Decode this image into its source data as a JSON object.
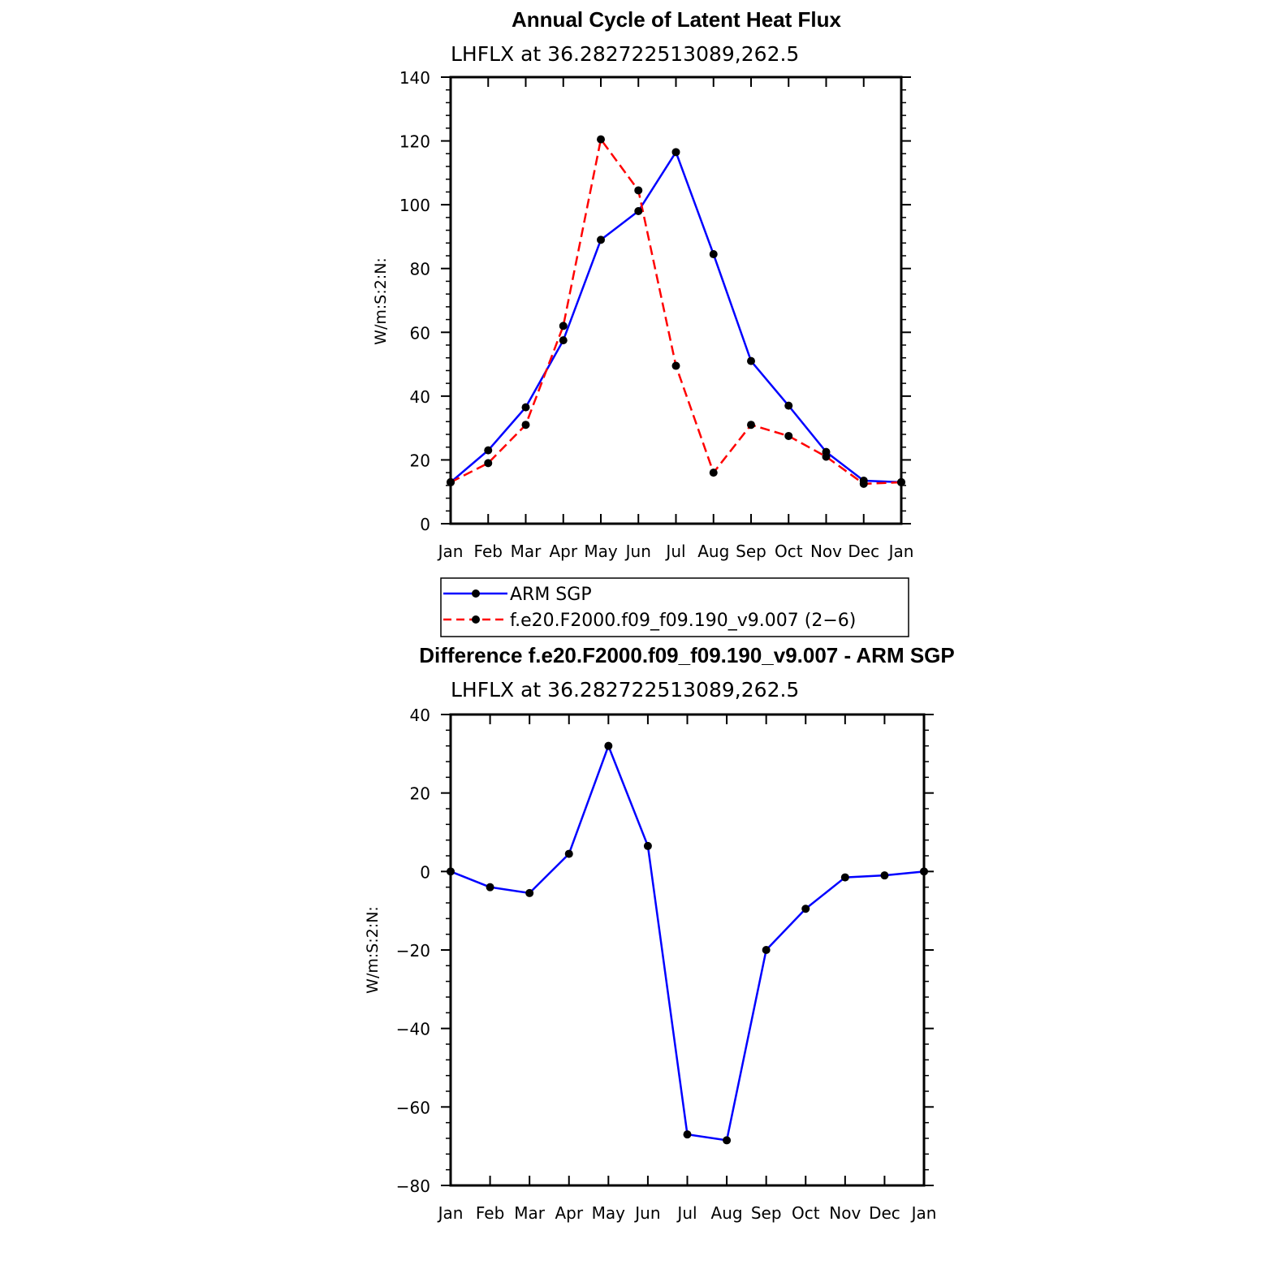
{
  "chart_data": [
    {
      "type": "line",
      "title": "Annual Cycle of Latent Heat Flux",
      "subtitle": "LHFLX at 36.282722513089,262.5",
      "ylabel": "W/m:S:2:N:",
      "ylim": [
        0,
        140
      ],
      "yticks": [
        0,
        20,
        40,
        60,
        80,
        100,
        120,
        140
      ],
      "categories": [
        "Jan",
        "Feb",
        "Mar",
        "Apr",
        "May",
        "Jun",
        "Jul",
        "Aug",
        "Sep",
        "Oct",
        "Nov",
        "Dec",
        "Jan"
      ],
      "grid": false,
      "legend_position": "below",
      "series": [
        {
          "name": "ARM SGP",
          "color": "#0000ff",
          "dash": "solid",
          "values": [
            13,
            23,
            36.5,
            57.5,
            89,
            98,
            116.5,
            84.5,
            51,
            37,
            22.5,
            13.5,
            13
          ]
        },
        {
          "name": "f.e20.F2000.f09_f09.190_v9.007 (2−6)",
          "color": "#ff0000",
          "dash": "dashed",
          "values": [
            13,
            19,
            31,
            62,
            120.5,
            104.5,
            49.5,
            16,
            31,
            27.5,
            21,
            12.5,
            13
          ]
        }
      ]
    },
    {
      "type": "line",
      "title": "Difference f.e20.F2000.f09_f09.190_v9.007 - ARM SGP",
      "subtitle": "LHFLX at 36.282722513089,262.5",
      "ylabel": "W/m:S:2:N:",
      "ylim": [
        -80,
        40
      ],
      "yticks": [
        -80,
        -60,
        -40,
        -20,
        0,
        20,
        40
      ],
      "categories": [
        "Jan",
        "Feb",
        "Mar",
        "Apr",
        "May",
        "Jun",
        "Jul",
        "Aug",
        "Sep",
        "Oct",
        "Nov",
        "Dec",
        "Jan"
      ],
      "grid": false,
      "series": [
        {
          "color": "#0000ff",
          "dash": "solid",
          "values": [
            0,
            -4,
            -5.5,
            4.5,
            32,
            6.5,
            -67,
            -68.5,
            -20,
            -9.5,
            -1.5,
            -1,
            0
          ]
        }
      ]
    }
  ]
}
